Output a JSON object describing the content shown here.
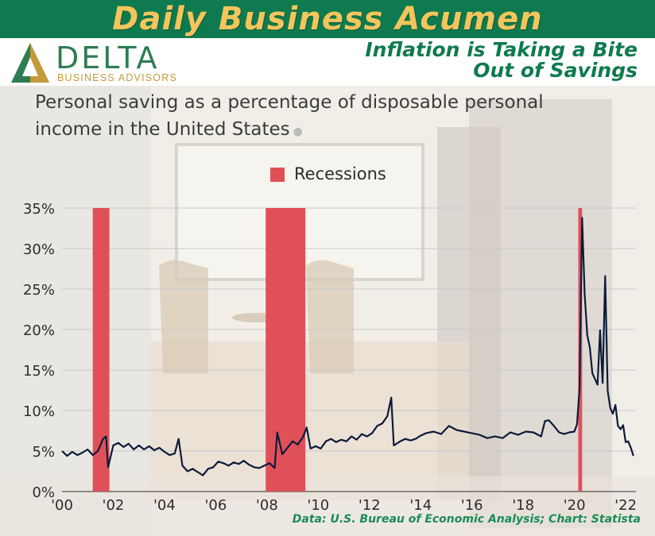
{
  "banner": {
    "title": "Daily Business Acumen",
    "headline_line1": "Inflation is Taking a Bite",
    "headline_line2": "Out of Savings"
  },
  "logo": {
    "name": "DELTA",
    "subtitle": "BUSINESS ADVISORS"
  },
  "colors": {
    "banner_green": "#0f7a4f",
    "banner_gold": "#f3c55c",
    "recession_red": "#e05058",
    "line_navy": "#0d1b3a"
  },
  "chart_data": {
    "type": "line",
    "title": "Personal saving as a percentage of disposable personal income in the United States",
    "legend": [
      {
        "name": "Recessions",
        "color": "#e05058"
      }
    ],
    "legend_placement": "top-center",
    "grid": true,
    "ylim": [
      0,
      35
    ],
    "y_ticks": [
      "0%",
      "5%",
      "10%",
      "15%",
      "20%",
      "25%",
      "30%",
      "35%"
    ],
    "xlim": [
      2000,
      2022.4
    ],
    "x_ticks": [
      "'00",
      "'02",
      "'04",
      "'06",
      "'08",
      "'10",
      "'12",
      "'14",
      "'16",
      "'18",
      "'20",
      "'22"
    ],
    "recessions": [
      {
        "start": 2001.2,
        "end": 2001.85
      },
      {
        "start": 2007.95,
        "end": 2009.5
      },
      {
        "start": 2020.15,
        "end": 2020.3
      }
    ],
    "series": [
      {
        "color": "#0d1b3a",
        "points": [
          [
            2000.0,
            5.0
          ],
          [
            2000.2,
            4.4
          ],
          [
            2000.4,
            4.9
          ],
          [
            2000.6,
            4.5
          ],
          [
            2000.8,
            4.8
          ],
          [
            2001.0,
            5.2
          ],
          [
            2001.2,
            4.5
          ],
          [
            2001.4,
            5.0
          ],
          [
            2001.6,
            6.5
          ],
          [
            2001.72,
            6.8
          ],
          [
            2001.8,
            3.0
          ],
          [
            2002.0,
            5.7
          ],
          [
            2002.2,
            6.0
          ],
          [
            2002.4,
            5.5
          ],
          [
            2002.6,
            5.9
          ],
          [
            2002.8,
            5.2
          ],
          [
            2003.0,
            5.7
          ],
          [
            2003.2,
            5.2
          ],
          [
            2003.4,
            5.6
          ],
          [
            2003.6,
            5.1
          ],
          [
            2003.8,
            5.4
          ],
          [
            2004.0,
            4.9
          ],
          [
            2004.2,
            4.5
          ],
          [
            2004.4,
            4.7
          ],
          [
            2004.55,
            6.5
          ],
          [
            2004.7,
            3.2
          ],
          [
            2004.9,
            2.5
          ],
          [
            2005.1,
            2.8
          ],
          [
            2005.3,
            2.4
          ],
          [
            2005.5,
            2.0
          ],
          [
            2005.7,
            2.8
          ],
          [
            2005.9,
            3.0
          ],
          [
            2006.1,
            3.7
          ],
          [
            2006.3,
            3.5
          ],
          [
            2006.5,
            3.2
          ],
          [
            2006.7,
            3.6
          ],
          [
            2006.9,
            3.4
          ],
          [
            2007.1,
            3.8
          ],
          [
            2007.3,
            3.3
          ],
          [
            2007.5,
            3.0
          ],
          [
            2007.7,
            2.9
          ],
          [
            2007.9,
            3.2
          ],
          [
            2008.1,
            3.5
          ],
          [
            2008.3,
            2.9
          ],
          [
            2008.4,
            7.3
          ],
          [
            2008.6,
            4.6
          ],
          [
            2008.8,
            5.4
          ],
          [
            2009.0,
            6.2
          ],
          [
            2009.2,
            5.8
          ],
          [
            2009.4,
            6.7
          ],
          [
            2009.55,
            7.9
          ],
          [
            2009.7,
            5.3
          ],
          [
            2009.9,
            5.6
          ],
          [
            2010.1,
            5.3
          ],
          [
            2010.3,
            6.2
          ],
          [
            2010.5,
            6.5
          ],
          [
            2010.7,
            6.1
          ],
          [
            2010.9,
            6.4
          ],
          [
            2011.1,
            6.2
          ],
          [
            2011.3,
            6.8
          ],
          [
            2011.5,
            6.4
          ],
          [
            2011.7,
            7.1
          ],
          [
            2011.9,
            6.8
          ],
          [
            2012.1,
            7.2
          ],
          [
            2012.3,
            8.1
          ],
          [
            2012.5,
            8.4
          ],
          [
            2012.7,
            9.3
          ],
          [
            2012.85,
            11.6
          ],
          [
            2012.95,
            5.7
          ],
          [
            2013.2,
            6.2
          ],
          [
            2013.4,
            6.5
          ],
          [
            2013.6,
            6.3
          ],
          [
            2013.8,
            6.5
          ],
          [
            2014.0,
            6.9
          ],
          [
            2014.2,
            7.2
          ],
          [
            2014.5,
            7.4
          ],
          [
            2014.8,
            7.1
          ],
          [
            2015.1,
            8.1
          ],
          [
            2015.4,
            7.6
          ],
          [
            2015.7,
            7.4
          ],
          [
            2016.0,
            7.2
          ],
          [
            2016.3,
            7.0
          ],
          [
            2016.6,
            6.6
          ],
          [
            2016.9,
            6.8
          ],
          [
            2017.2,
            6.6
          ],
          [
            2017.5,
            7.3
          ],
          [
            2017.8,
            7.0
          ],
          [
            2018.1,
            7.4
          ],
          [
            2018.4,
            7.3
          ],
          [
            2018.7,
            6.8
          ],
          [
            2018.85,
            8.7
          ],
          [
            2019.0,
            8.8
          ],
          [
            2019.2,
            8.1
          ],
          [
            2019.4,
            7.3
          ],
          [
            2019.6,
            7.1
          ],
          [
            2019.8,
            7.3
          ],
          [
            2020.0,
            7.4
          ],
          [
            2020.1,
            8.3
          ],
          [
            2020.2,
            12.8
          ],
          [
            2020.3,
            33.8
          ],
          [
            2020.4,
            24.4
          ],
          [
            2020.5,
            19.3
          ],
          [
            2020.6,
            17.8
          ],
          [
            2020.7,
            14.6
          ],
          [
            2020.8,
            13.9
          ],
          [
            2020.9,
            13.2
          ],
          [
            2021.0,
            19.9
          ],
          [
            2021.1,
            13.4
          ],
          [
            2021.2,
            26.6
          ],
          [
            2021.3,
            12.4
          ],
          [
            2021.4,
            10.3
          ],
          [
            2021.5,
            9.6
          ],
          [
            2021.6,
            10.7
          ],
          [
            2021.7,
            8.1
          ],
          [
            2021.8,
            7.7
          ],
          [
            2021.9,
            8.2
          ],
          [
            2022.0,
            6.1
          ],
          [
            2022.1,
            6.2
          ],
          [
            2022.2,
            5.4
          ],
          [
            2022.3,
            4.4
          ]
        ]
      }
    ]
  },
  "source": "Data: U.S. Bureau of Economic Analysis; Chart: Statista"
}
